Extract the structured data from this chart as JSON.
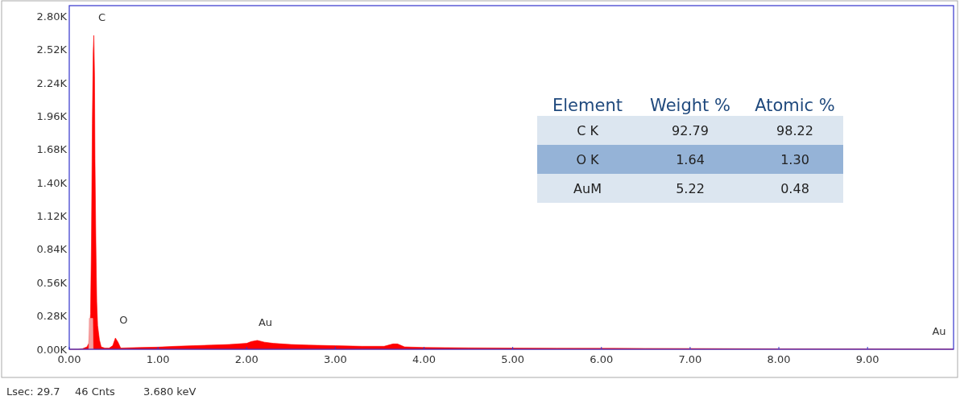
{
  "chart_data": [
    {
      "type": "area",
      "xlim": [
        0,
        9.97
      ],
      "xticks": [
        {
          "value": 0,
          "label": "0.00"
        },
        {
          "value": 1,
          "label": "1.00"
        },
        {
          "value": 2,
          "label": "2.00"
        },
        {
          "value": 3,
          "label": "3.00"
        },
        {
          "value": 4,
          "label": "4.00"
        },
        {
          "value": 5,
          "label": "5.00"
        },
        {
          "value": 6,
          "label": "6.00"
        },
        {
          "value": 7,
          "label": "7.00"
        },
        {
          "value": 8,
          "label": "8.00"
        },
        {
          "value": 9,
          "label": "9.00"
        }
      ],
      "ylim": [
        0,
        2.89
      ],
      "yticks": [
        {
          "value": 0,
          "label": "0.00K"
        },
        {
          "value": 0.28,
          "label": "0.28K"
        },
        {
          "value": 0.56,
          "label": "0.56K"
        },
        {
          "value": 0.84,
          "label": "0.84K"
        },
        {
          "value": 1.12,
          "label": "1.12K"
        },
        {
          "value": 1.4,
          "label": "1.40K"
        },
        {
          "value": 1.68,
          "label": "1.68K"
        },
        {
          "value": 1.96,
          "label": "1.96K"
        },
        {
          "value": 2.24,
          "label": "2.24K"
        },
        {
          "value": 2.52,
          "label": "2.52K"
        },
        {
          "value": 2.8,
          "label": "2.80K"
        }
      ],
      "series": [
        {
          "color": "#ff0000",
          "x": [
            0,
            0.1,
            0.15,
            0.2,
            0.22,
            0.24,
            0.25,
            0.26,
            0.27,
            0.277,
            0.285,
            0.29,
            0.3,
            0.31,
            0.32,
            0.34,
            0.36,
            0.4,
            0.45,
            0.49,
            0.52,
            0.55,
            0.58,
            0.65,
            0.8,
            1.0,
            1.2,
            1.4,
            1.6,
            1.8,
            1.9,
            2.0,
            2.05,
            2.12,
            2.2,
            2.3,
            2.5,
            2.7,
            3.0,
            3.3,
            3.55,
            3.65,
            3.7,
            3.78,
            4.0,
            4.5,
            5.0,
            5.5,
            6.0,
            6.5,
            7.0,
            8.0,
            9.0,
            9.97
          ],
          "values": [
            0,
            0,
            0.005,
            0.02,
            0.05,
            0.3,
            0.9,
            1.9,
            2.5,
            2.64,
            2.3,
            1.6,
            0.9,
            0.4,
            0.2,
            0.08,
            0.02,
            0.01,
            0.01,
            0.03,
            0.095,
            0.06,
            0.01,
            0.012,
            0.015,
            0.018,
            0.025,
            0.03,
            0.035,
            0.04,
            0.045,
            0.05,
            0.065,
            0.075,
            0.06,
            0.05,
            0.04,
            0.035,
            0.03,
            0.025,
            0.025,
            0.045,
            0.045,
            0.02,
            0.015,
            0.012,
            0.01,
            0.009,
            0.008,
            0.007,
            0.006,
            0.004,
            0.003,
            0.002
          ]
        },
        {
          "color": "#f4a0a0",
          "x": [
            0.22,
            0.225,
            0.265,
            0.27
          ],
          "values": [
            0,
            0.26,
            0.26,
            0
          ]
        }
      ],
      "annotations": [
        {
          "text": "C",
          "x": 0.277,
          "y": 2.64
        },
        {
          "text": "O",
          "x": 0.52,
          "y": 0.095
        },
        {
          "text": "Au",
          "x": 2.12,
          "y": 0.075
        },
        {
          "text": "Au",
          "x": 9.97,
          "y": 0.002
        },
        "Lsec: 29.7",
        "46 Cnts",
        "3.680 keV"
      ]
    },
    {
      "type": "other",
      "ylabel": "Element",
      "categories": [
        "Weight %",
        "Atomic %"
      ],
      "y_categories": [
        "C K",
        "O K",
        "AuM"
      ],
      "annotations": [
        "92.79",
        "98.22",
        "1.64",
        "1.30",
        "5.22",
        "0.48"
      ],
      "colors": [
        "#dce6f0",
        "#95b3d7",
        "#dce6f0"
      ]
    }
  ]
}
